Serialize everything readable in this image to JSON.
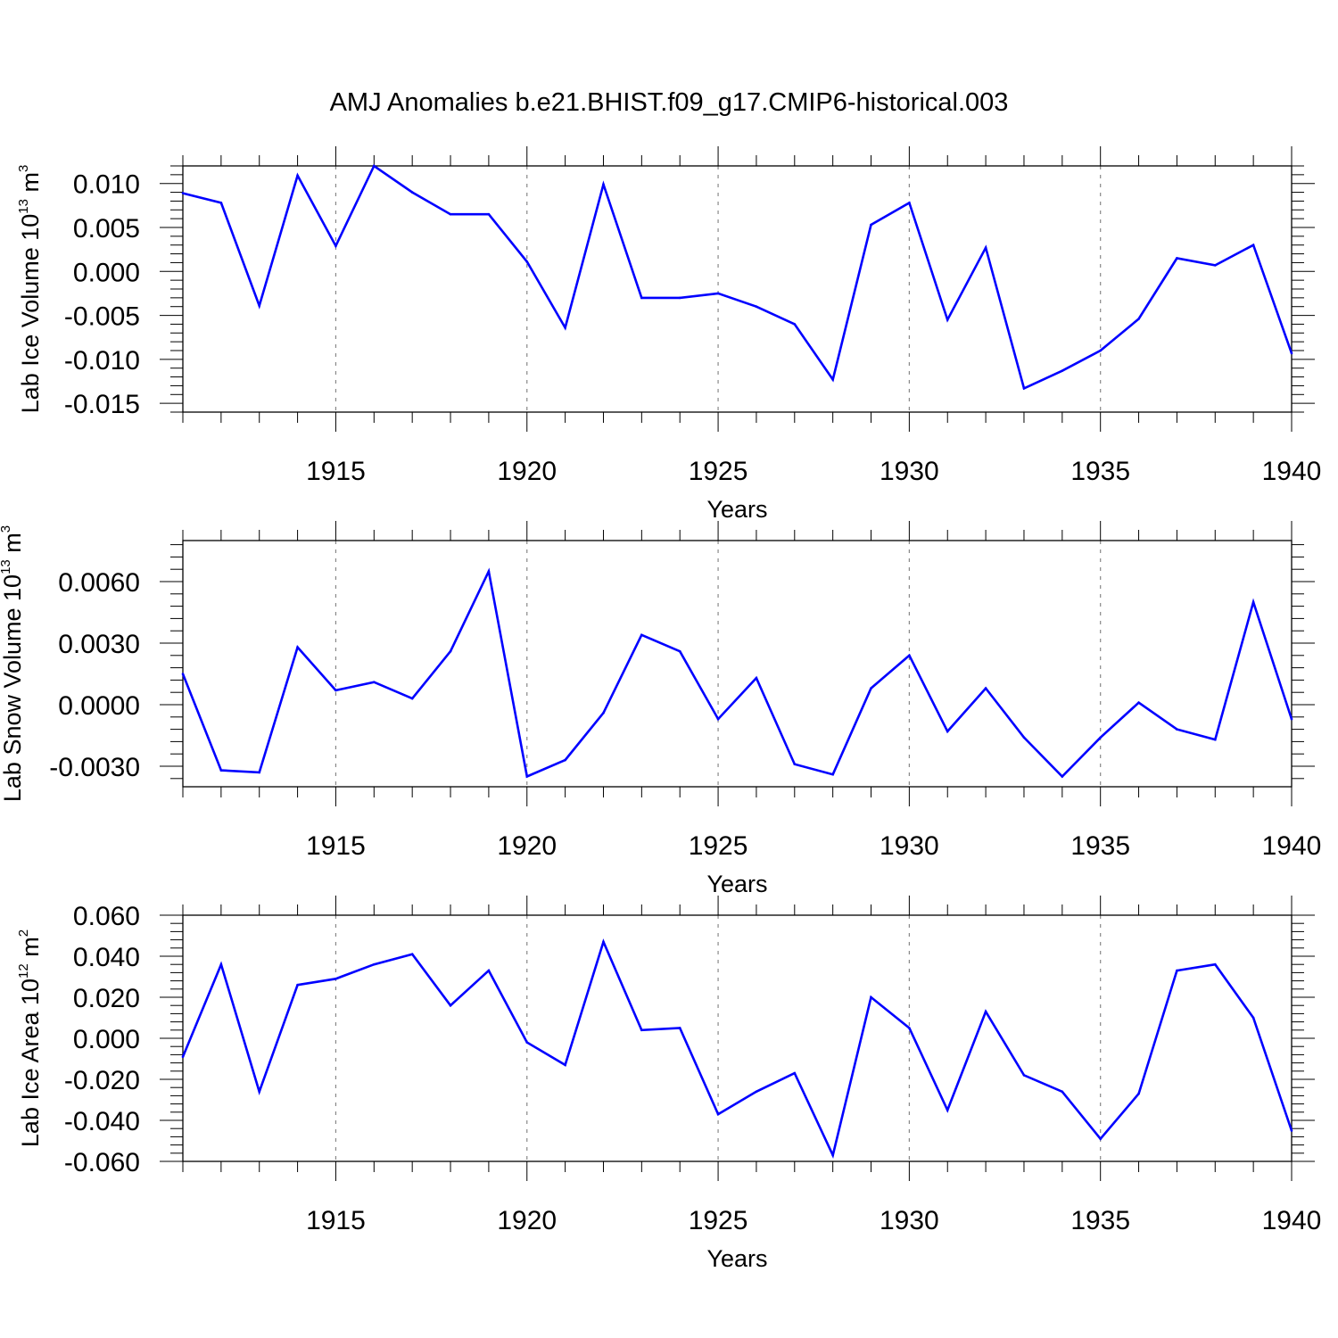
{
  "title": "AMJ Anomalies b.e21.BHIST.f09_g17.CMIP6-historical.003",
  "colors": {
    "line": "#0000ff",
    "axis": "#000000",
    "grid": "#888888"
  },
  "chart_data": [
    {
      "type": "line",
      "ylabel": {
        "prefix": "Lab Ice Volume 10",
        "exp": "13",
        "unit": " m",
        "unit_exp": "3"
      },
      "xlabel": "Years",
      "xlim": [
        1911,
        1940
      ],
      "ylim": [
        -0.016,
        0.012
      ],
      "yticks": [
        0.01,
        0.005,
        0.0,
        -0.005,
        -0.01,
        -0.015
      ],
      "ytick_labels": [
        "0.010",
        "0.005",
        "0.000",
        "-0.005",
        "-0.010",
        "-0.015"
      ],
      "xticks": [
        1915,
        1920,
        1925,
        1930,
        1935,
        1940
      ],
      "xtick_labels": [
        "1915",
        "1920",
        "1925",
        "1930",
        "1935",
        "1940"
      ],
      "grid": "vertical dashed at major x ticks",
      "x": [
        1911,
        1912,
        1913,
        1914,
        1915,
        1916,
        1917,
        1918,
        1919,
        1920,
        1921,
        1922,
        1923,
        1924,
        1925,
        1926,
        1927,
        1928,
        1929,
        1930,
        1931,
        1932,
        1933,
        1934,
        1935,
        1936,
        1937,
        1938,
        1939,
        1940
      ],
      "series": [
        {
          "values": [
            0.0089,
            0.0078,
            -0.0039,
            0.0109,
            0.0029,
            0.012,
            0.009,
            0.0065,
            0.0065,
            0.0011,
            -0.0064,
            0.0099,
            -0.003,
            -0.003,
            -0.0025,
            -0.004,
            -0.006,
            -0.0123,
            0.0053,
            0.0078,
            -0.0055,
            0.0027,
            -0.0133,
            -0.0113,
            -0.009,
            -0.0054,
            0.0015,
            0.0007,
            0.003,
            -0.0093
          ]
        }
      ]
    },
    {
      "type": "line",
      "ylabel": {
        "prefix": "Lab Snow Volume 10",
        "exp": "13",
        "unit": " m",
        "unit_exp": "3"
      },
      "xlabel": "Years",
      "xlim": [
        1911,
        1940
      ],
      "ylim": [
        -0.004,
        0.008
      ],
      "yticks": [
        0.006,
        0.003,
        0.0,
        -0.003
      ],
      "ytick_labels": [
        "0.0060",
        "0.0030",
        "0.0000",
        "-0.0030"
      ],
      "xticks": [
        1915,
        1920,
        1925,
        1930,
        1935,
        1940
      ],
      "xtick_labels": [
        "1915",
        "1920",
        "1925",
        "1930",
        "1935",
        "1940"
      ],
      "grid": "vertical dashed at major x ticks",
      "x": [
        1911,
        1912,
        1913,
        1914,
        1915,
        1916,
        1917,
        1918,
        1919,
        1920,
        1921,
        1922,
        1923,
        1924,
        1925,
        1926,
        1927,
        1928,
        1929,
        1930,
        1931,
        1932,
        1933,
        1934,
        1935,
        1936,
        1937,
        1938,
        1939,
        1940
      ],
      "series": [
        {
          "values": [
            0.0015,
            -0.0032,
            -0.0033,
            0.0028,
            0.0007,
            0.0011,
            0.0003,
            0.0026,
            0.0065,
            -0.0035,
            -0.0027,
            -0.0004,
            0.0034,
            0.0026,
            -0.0007,
            0.0013,
            -0.0029,
            -0.0034,
            0.0008,
            0.0024,
            -0.0013,
            0.0008,
            -0.0016,
            -0.0035,
            -0.0016,
            0.0001,
            -0.0012,
            -0.0017,
            0.005,
            -0.0007
          ]
        }
      ]
    },
    {
      "type": "line",
      "ylabel": {
        "prefix": "Lab Ice Area 10",
        "exp": "12",
        "unit": " m",
        "unit_exp": "2"
      },
      "xlabel": "Years",
      "xlim": [
        1911,
        1940
      ],
      "ylim": [
        -0.06,
        0.06
      ],
      "yticks": [
        0.06,
        0.04,
        0.02,
        0.0,
        -0.02,
        -0.04,
        -0.06
      ],
      "ytick_labels": [
        "0.060",
        "0.040",
        "0.020",
        "0.000",
        "-0.020",
        "-0.040",
        "-0.060"
      ],
      "xticks": [
        1915,
        1920,
        1925,
        1930,
        1935,
        1940
      ],
      "xtick_labels": [
        "1915",
        "1920",
        "1925",
        "1930",
        "1935",
        "1940"
      ],
      "grid": "vertical dashed at major x ticks",
      "x": [
        1911,
        1912,
        1913,
        1914,
        1915,
        1916,
        1917,
        1918,
        1919,
        1920,
        1921,
        1922,
        1923,
        1924,
        1925,
        1926,
        1927,
        1928,
        1929,
        1930,
        1931,
        1932,
        1933,
        1934,
        1935,
        1936,
        1937,
        1938,
        1939,
        1940
      ],
      "series": [
        {
          "values": [
            -0.009,
            0.036,
            -0.026,
            0.026,
            0.029,
            0.036,
            0.041,
            0.016,
            0.033,
            -0.002,
            -0.013,
            0.047,
            0.004,
            0.005,
            -0.037,
            -0.026,
            -0.017,
            -0.057,
            0.02,
            0.005,
            -0.035,
            0.013,
            -0.018,
            -0.026,
            -0.049,
            -0.027,
            0.033,
            0.036,
            0.01,
            -0.045
          ]
        }
      ]
    }
  ]
}
